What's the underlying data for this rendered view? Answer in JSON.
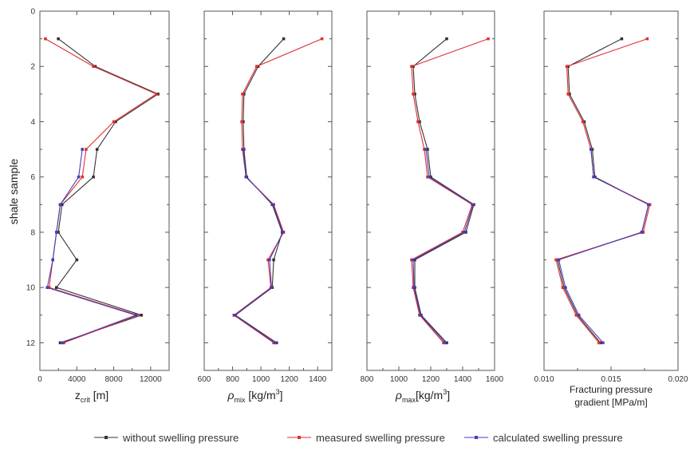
{
  "colors": {
    "without": "#333333",
    "measured": "#e03030",
    "calculated": "#4b3bb8",
    "axis": "#555555"
  },
  "legend": [
    {
      "key": "without",
      "label": "without swelling pressure"
    },
    {
      "key": "measured",
      "label": "measured swelling pressure"
    },
    {
      "key": "calculated",
      "label": "calculated swelling pressure"
    }
  ],
  "shared_y": {
    "label": "shale sample",
    "ticks": [
      "0",
      "2",
      "4",
      "6",
      "8",
      "10",
      "12"
    ],
    "ylim": [
      0,
      13
    ],
    "inverted": true
  },
  "panels_text": [
    {
      "label_parts": [
        "z",
        "crit",
        " [m]"
      ]
    },
    {
      "label_parts": [
        "ρ",
        "mix",
        " [kg/m",
        "3",
        "]"
      ]
    },
    {
      "label_parts": [
        "ρ",
        "max",
        "[kg/m",
        "3",
        "]"
      ]
    },
    {
      "label_line1": "Fracturing pressure",
      "label_line2": "gradient [MPa/m]"
    }
  ],
  "chart_data": [
    {
      "type": "line",
      "xlabel": "zcrit [m]",
      "ylabel": "shale sample",
      "xlim": [
        0,
        14000
      ],
      "xticks": [
        0,
        4000,
        8000,
        12000
      ],
      "xtick_labels": [
        "0",
        "4000",
        "8000",
        "12000"
      ],
      "ylim": [
        0,
        13
      ],
      "series": [
        {
          "name": "without swelling pressure",
          "y": [
            1,
            2,
            3,
            4,
            5,
            6,
            7,
            8,
            9,
            10,
            11,
            12
          ],
          "x": [
            2000,
            6000,
            12800,
            8200,
            6200,
            5800,
            2400,
            2000,
            4000,
            1800,
            11000,
            2200
          ]
        },
        {
          "name": "measured swelling pressure",
          "y": [
            1,
            2,
            3,
            4,
            5,
            6,
            7,
            8,
            9,
            10,
            11,
            12
          ],
          "x": [
            600,
            5800,
            12600,
            8000,
            5000,
            4600,
            2200,
            1800,
            1400,
            1000,
            10600,
            2600
          ]
        },
        {
          "name": "calculated swelling pressure",
          "y": [
            5,
            6,
            7,
            8,
            9,
            10,
            11,
            12
          ],
          "x": [
            4600,
            4200,
            2200,
            1800,
            1400,
            800,
            10400,
            2400
          ]
        }
      ]
    },
    {
      "type": "line",
      "xlabel": "ρmix [kg/m3]",
      "ylabel": "shale sample",
      "xlim": [
        600,
        1500
      ],
      "xticks": [
        600,
        800,
        1000,
        1200,
        1400
      ],
      "xtick_labels": [
        "600",
        "800",
        "1000",
        "1200",
        "1400"
      ],
      "ylim": [
        0,
        13
      ],
      "series": [
        {
          "name": "without swelling pressure",
          "y": [
            1,
            2,
            3,
            4,
            5,
            6,
            7,
            8,
            9,
            10,
            11,
            12
          ],
          "x": [
            1160,
            980,
            880,
            875,
            880,
            900,
            1080,
            1150,
            1090,
            1080,
            820,
            1110
          ]
        },
        {
          "name": "measured swelling pressure",
          "y": [
            1,
            2,
            3,
            4,
            5,
            6,
            7,
            8,
            9,
            10,
            11,
            12
          ],
          "x": [
            1430,
            970,
            870,
            865,
            870,
            895,
            1090,
            1160,
            1050,
            1070,
            810,
            1090
          ]
        },
        {
          "name": "calculated swelling pressure",
          "y": [
            5,
            6,
            7,
            8,
            9,
            10,
            11,
            12
          ],
          "x": [
            875,
            895,
            1085,
            1155,
            1060,
            1075,
            815,
            1100
          ]
        }
      ]
    },
    {
      "type": "line",
      "xlabel": "ρmax [kg/m3]",
      "ylabel": "shale sample",
      "xlim": [
        800,
        1600
      ],
      "xticks": [
        800,
        1000,
        1200,
        1400,
        1600
      ],
      "xtick_labels": [
        "800",
        "1000",
        "1200",
        "1400",
        "1600"
      ],
      "ylim": [
        0,
        13
      ],
      "series": [
        {
          "name": "without swelling pressure",
          "y": [
            1,
            2,
            3,
            4,
            5,
            6,
            7,
            8,
            9,
            10,
            11,
            12
          ],
          "x": [
            1300,
            1090,
            1100,
            1130,
            1180,
            1200,
            1470,
            1420,
            1100,
            1100,
            1140,
            1300
          ]
        },
        {
          "name": "measured swelling pressure",
          "y": [
            1,
            2,
            3,
            4,
            5,
            6,
            7,
            8,
            9,
            10,
            11,
            12
          ],
          "x": [
            1560,
            1080,
            1090,
            1120,
            1160,
            1180,
            1460,
            1400,
            1080,
            1090,
            1130,
            1280
          ]
        },
        {
          "name": "calculated swelling pressure",
          "y": [
            5,
            6,
            7,
            8,
            9,
            10,
            11,
            12
          ],
          "x": [
            1170,
            1190,
            1465,
            1410,
            1090,
            1095,
            1135,
            1290
          ]
        }
      ]
    },
    {
      "type": "line",
      "xlabel": "Fracturing pressure gradient [MPa/m]",
      "ylabel": "shale sample",
      "xlim": [
        0.01,
        0.02
      ],
      "xticks": [
        0.01,
        0.015,
        0.02
      ],
      "xtick_labels": [
        "0.010",
        "0.015",
        "0.020"
      ],
      "ylim": [
        0,
        13
      ],
      "series": [
        {
          "name": "without swelling pressure",
          "y": [
            1,
            2,
            3,
            4,
            5,
            6,
            7,
            8,
            9,
            10,
            11,
            12
          ],
          "x": [
            0.0158,
            0.0118,
            0.0119,
            0.013,
            0.0136,
            0.0138,
            0.0178,
            0.0173,
            0.011,
            0.0115,
            0.0125,
            0.0142
          ]
        },
        {
          "name": "measured swelling pressure",
          "y": [
            1,
            2,
            3,
            4,
            5,
            6,
            7,
            8,
            9,
            10,
            11,
            12
          ],
          "x": [
            0.0177,
            0.0117,
            0.0118,
            0.0129,
            0.0135,
            0.0137,
            0.0179,
            0.0174,
            0.0109,
            0.0114,
            0.0124,
            0.0141
          ]
        },
        {
          "name": "calculated swelling pressure",
          "y": [
            5,
            6,
            7,
            8,
            9,
            10,
            11,
            12
          ],
          "x": [
            0.0135,
            0.0137,
            0.0178,
            0.0173,
            0.0111,
            0.0116,
            0.0126,
            0.0144
          ]
        }
      ]
    }
  ]
}
